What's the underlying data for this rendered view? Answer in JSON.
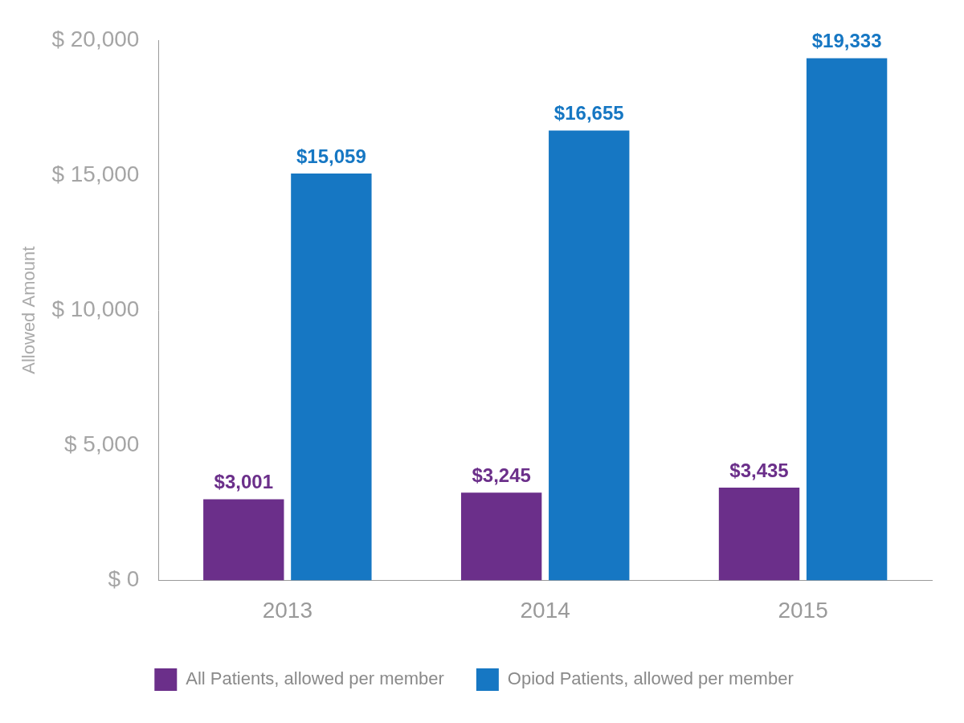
{
  "chart_data": {
    "type": "bar",
    "y_label": "Allowed Amount",
    "categories": [
      "2013",
      "2014",
      "2015"
    ],
    "series": [
      {
        "name": "All Patients, allowed per member",
        "color": "#6b2f8a",
        "values": [
          3001,
          3245,
          3435
        ],
        "value_labels": [
          "$3,001",
          "$3,245",
          "$3,435"
        ]
      },
      {
        "name": "Opiod Patients, allowed per member",
        "color": "#1677c3",
        "values": [
          15059,
          16655,
          19333
        ],
        "value_labels": [
          "$15,059",
          "$16,655",
          "$19,333"
        ]
      }
    ],
    "ylim": [
      0,
      20000
    ],
    "yticks": [
      {
        "value": 0,
        "label": "$ 0"
      },
      {
        "value": 5000,
        "label": "$ 5,000"
      },
      {
        "value": 10000,
        "label": "$ 10,000"
      },
      {
        "value": 15000,
        "label": "$ 15,000"
      },
      {
        "value": 20000,
        "label": "$ 20,000"
      }
    ],
    "grid": false,
    "legend": "bottom",
    "data_labels": true
  }
}
